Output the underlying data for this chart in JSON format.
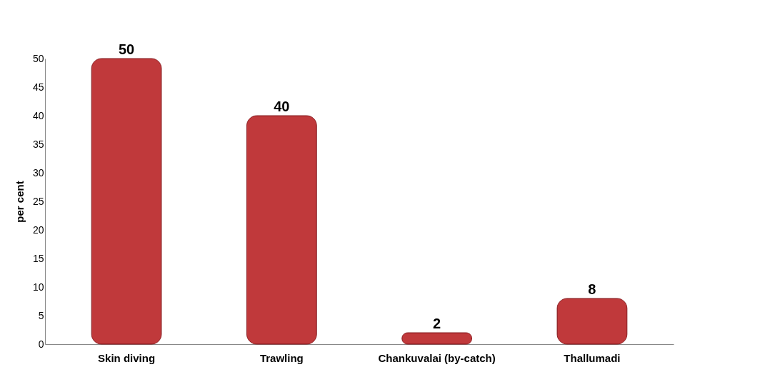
{
  "chart_data": {
    "type": "bar",
    "ylabel": "per cent",
    "categories": [
      "Skin diving",
      "Trawling",
      "Chankuvalai (by-catch)",
      "Thallumadi"
    ],
    "values": [
      50,
      40,
      2,
      8
    ],
    "color": "#c0393b",
    "ylim": [
      0,
      50
    ],
    "yticks": [
      0,
      5,
      10,
      15,
      20,
      25,
      30,
      35,
      40,
      45,
      50
    ],
    "data_labels": true,
    "grid": false
  }
}
